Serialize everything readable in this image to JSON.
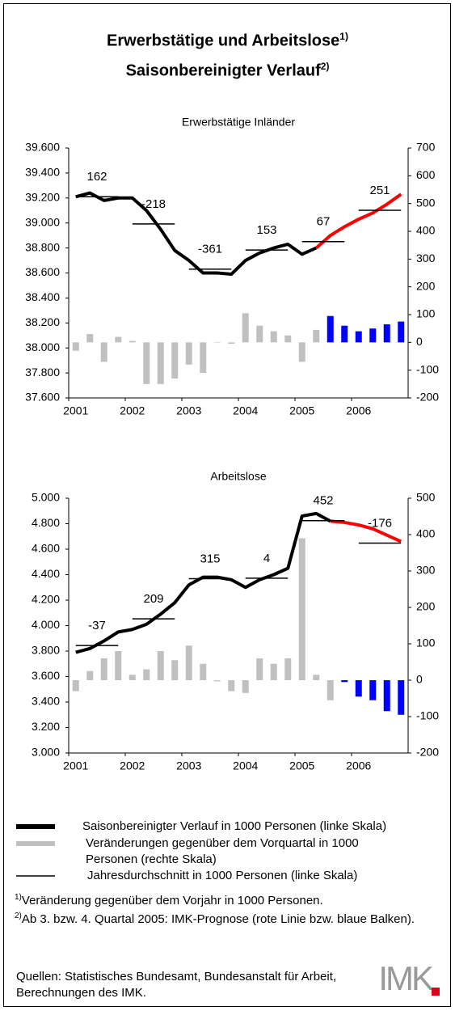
{
  "title": [
    {
      "text": "Erwerbstätige und Arbeitslose",
      "sup": "1)"
    },
    {
      "text": "Saisonbereinigter Verlauf",
      "sup": "2)"
    }
  ],
  "chart_data": [
    {
      "type": "combo",
      "title": "Erwerbstätige Inländer",
      "categories": [
        "2001",
        null,
        null,
        null,
        "2002",
        null,
        null,
        null,
        "2003",
        null,
        null,
        null,
        "2004",
        null,
        null,
        null,
        "2005",
        null,
        null,
        null,
        "2006",
        null,
        null,
        null
      ],
      "ylim": [
        37600,
        39600
      ],
      "yticks": [
        {
          "value": 37600,
          "label": "37.600"
        },
        {
          "value": 37800,
          "label": "37.800"
        },
        {
          "value": 38000,
          "label": "38.000"
        },
        {
          "value": 38200,
          "label": "38.200"
        },
        {
          "value": 38400,
          "label": "38.400"
        },
        {
          "value": 38600,
          "label": "38.600"
        },
        {
          "value": 38800,
          "label": "38.800"
        },
        {
          "value": 39000,
          "label": "39.000"
        },
        {
          "value": 39200,
          "label": "39.200"
        },
        {
          "value": 39400,
          "label": "39.400"
        },
        {
          "value": 39600,
          "label": "39.600"
        }
      ],
      "y2lim": [
        -200,
        700
      ],
      "y2ticks": [
        -200,
        -100,
        0,
        100,
        200,
        300,
        400,
        500,
        600,
        700
      ],
      "series": [
        {
          "name": "Saisonbereinigter Verlauf in 1000 Personen (linke Skala)",
          "type": "line",
          "color": "#000000",
          "values": [
            39210,
            39240,
            39180,
            39200,
            39200,
            39100,
            38950,
            38780,
            38700,
            38600,
            38600,
            38590,
            38700,
            38760,
            38800,
            38830,
            38750,
            38800,
            null,
            null,
            null,
            null,
            null,
            null
          ]
        },
        {
          "type": "line",
          "color": "#ff0000",
          "values": [
            null,
            null,
            null,
            null,
            null,
            null,
            null,
            null,
            null,
            null,
            null,
            null,
            null,
            null,
            null,
            null,
            null,
            38800,
            38900,
            38970,
            39030,
            39080,
            39150,
            39230
          ]
        },
        {
          "name": "Veränderungen gegenüber dem Vorquartal in 1000 Personen (rechte Skala)",
          "type": "bar",
          "axis": "y2",
          "color": "#c0c0c0",
          "values": [
            -30,
            30,
            -70,
            20,
            5,
            -150,
            -150,
            -130,
            -80,
            -110,
            0,
            -5,
            105,
            60,
            40,
            25,
            -70,
            45,
            null,
            null,
            null,
            null,
            null,
            null
          ]
        },
        {
          "type": "bar",
          "axis": "y2",
          "color": "#0000ff",
          "values": [
            null,
            null,
            null,
            null,
            null,
            null,
            null,
            null,
            null,
            null,
            null,
            null,
            null,
            null,
            null,
            null,
            null,
            null,
            95,
            60,
            40,
            50,
            65,
            75
          ]
        }
      ],
      "annual_averages": {
        "name": "Jahresdurchschnitt in 1000 Personen (linke Skala)",
        "values": [
          39210,
          38992,
          38631,
          38784,
          38851,
          39102
        ],
        "changes": [
          162,
          -218,
          -361,
          153,
          67,
          251
        ]
      }
    },
    {
      "type": "combo",
      "title": "Arbeitslose",
      "categories": [
        "2001",
        null,
        null,
        null,
        "2002",
        null,
        null,
        null,
        "2003",
        null,
        null,
        null,
        "2004",
        null,
        null,
        null,
        "2005",
        null,
        null,
        null,
        "2006",
        null,
        null,
        null
      ],
      "ylim": [
        3000,
        5000
      ],
      "yticks": [
        {
          "value": 3000,
          "label": "3.000"
        },
        {
          "value": 3200,
          "label": "3.200"
        },
        {
          "value": 3400,
          "label": "3.400"
        },
        {
          "value": 3600,
          "label": "3.600"
        },
        {
          "value": 3800,
          "label": "3.800"
        },
        {
          "value": 4000,
          "label": "4.000"
        },
        {
          "value": 4200,
          "label": "4.200"
        },
        {
          "value": 4400,
          "label": "4.400"
        },
        {
          "value": 4600,
          "label": "4.600"
        },
        {
          "value": 4800,
          "label": "4.800"
        },
        {
          "value": 5000,
          "label": "5.000"
        }
      ],
      "y2lim": [
        -200,
        500
      ],
      "y2ticks": [
        -200,
        -100,
        0,
        100,
        200,
        300,
        400,
        500
      ],
      "series": [
        {
          "type": "line",
          "color": "#000000",
          "values": [
            3790,
            3820,
            3880,
            3950,
            3970,
            4010,
            4090,
            4180,
            4320,
            4380,
            4380,
            4360,
            4300,
            4360,
            4400,
            4450,
            4860,
            4880,
            4820,
            null,
            null,
            null,
            null,
            null
          ]
        },
        {
          "type": "line",
          "color": "#ff0000",
          "values": [
            null,
            null,
            null,
            null,
            null,
            null,
            null,
            null,
            null,
            null,
            null,
            null,
            null,
            null,
            null,
            null,
            null,
            null,
            4820,
            4810,
            4790,
            4760,
            4710,
            4660
          ]
        },
        {
          "type": "bar",
          "axis": "y2",
          "color": "#c0c0c0",
          "values": [
            -30,
            25,
            60,
            80,
            15,
            30,
            80,
            55,
            95,
            45,
            -3,
            -30,
            -35,
            60,
            45,
            60,
            390,
            15,
            -55,
            null,
            null,
            null,
            null,
            null
          ]
        },
        {
          "type": "bar",
          "axis": "y2",
          "color": "#0000ff",
          "values": [
            null,
            null,
            null,
            null,
            null,
            null,
            null,
            null,
            null,
            null,
            null,
            null,
            null,
            null,
            null,
            null,
            null,
            null,
            null,
            -5,
            -45,
            -55,
            -85,
            -95
          ]
        }
      ],
      "annual_averages": {
        "values": [
          3844,
          4053,
          4368,
          4372,
          4824,
          4648
        ],
        "changes": [
          -37,
          209,
          315,
          4,
          452,
          -176
        ]
      }
    }
  ],
  "footnotes": [
    {
      "mark": "1)",
      "text": "Veränderung gegenüber dem Vorjahr in 1000 Personen."
    },
    {
      "mark": "2)",
      "text": "Ab 3. bzw. 4. Quartal 2005: IMK-Prognose (rote Linie bzw. blaue Balken)."
    }
  ],
  "source": "Quellen: Statistisches Bundesamt, Bundesanstalt für Arbeit, Berechnungen des IMK.",
  "logo": "IMK"
}
